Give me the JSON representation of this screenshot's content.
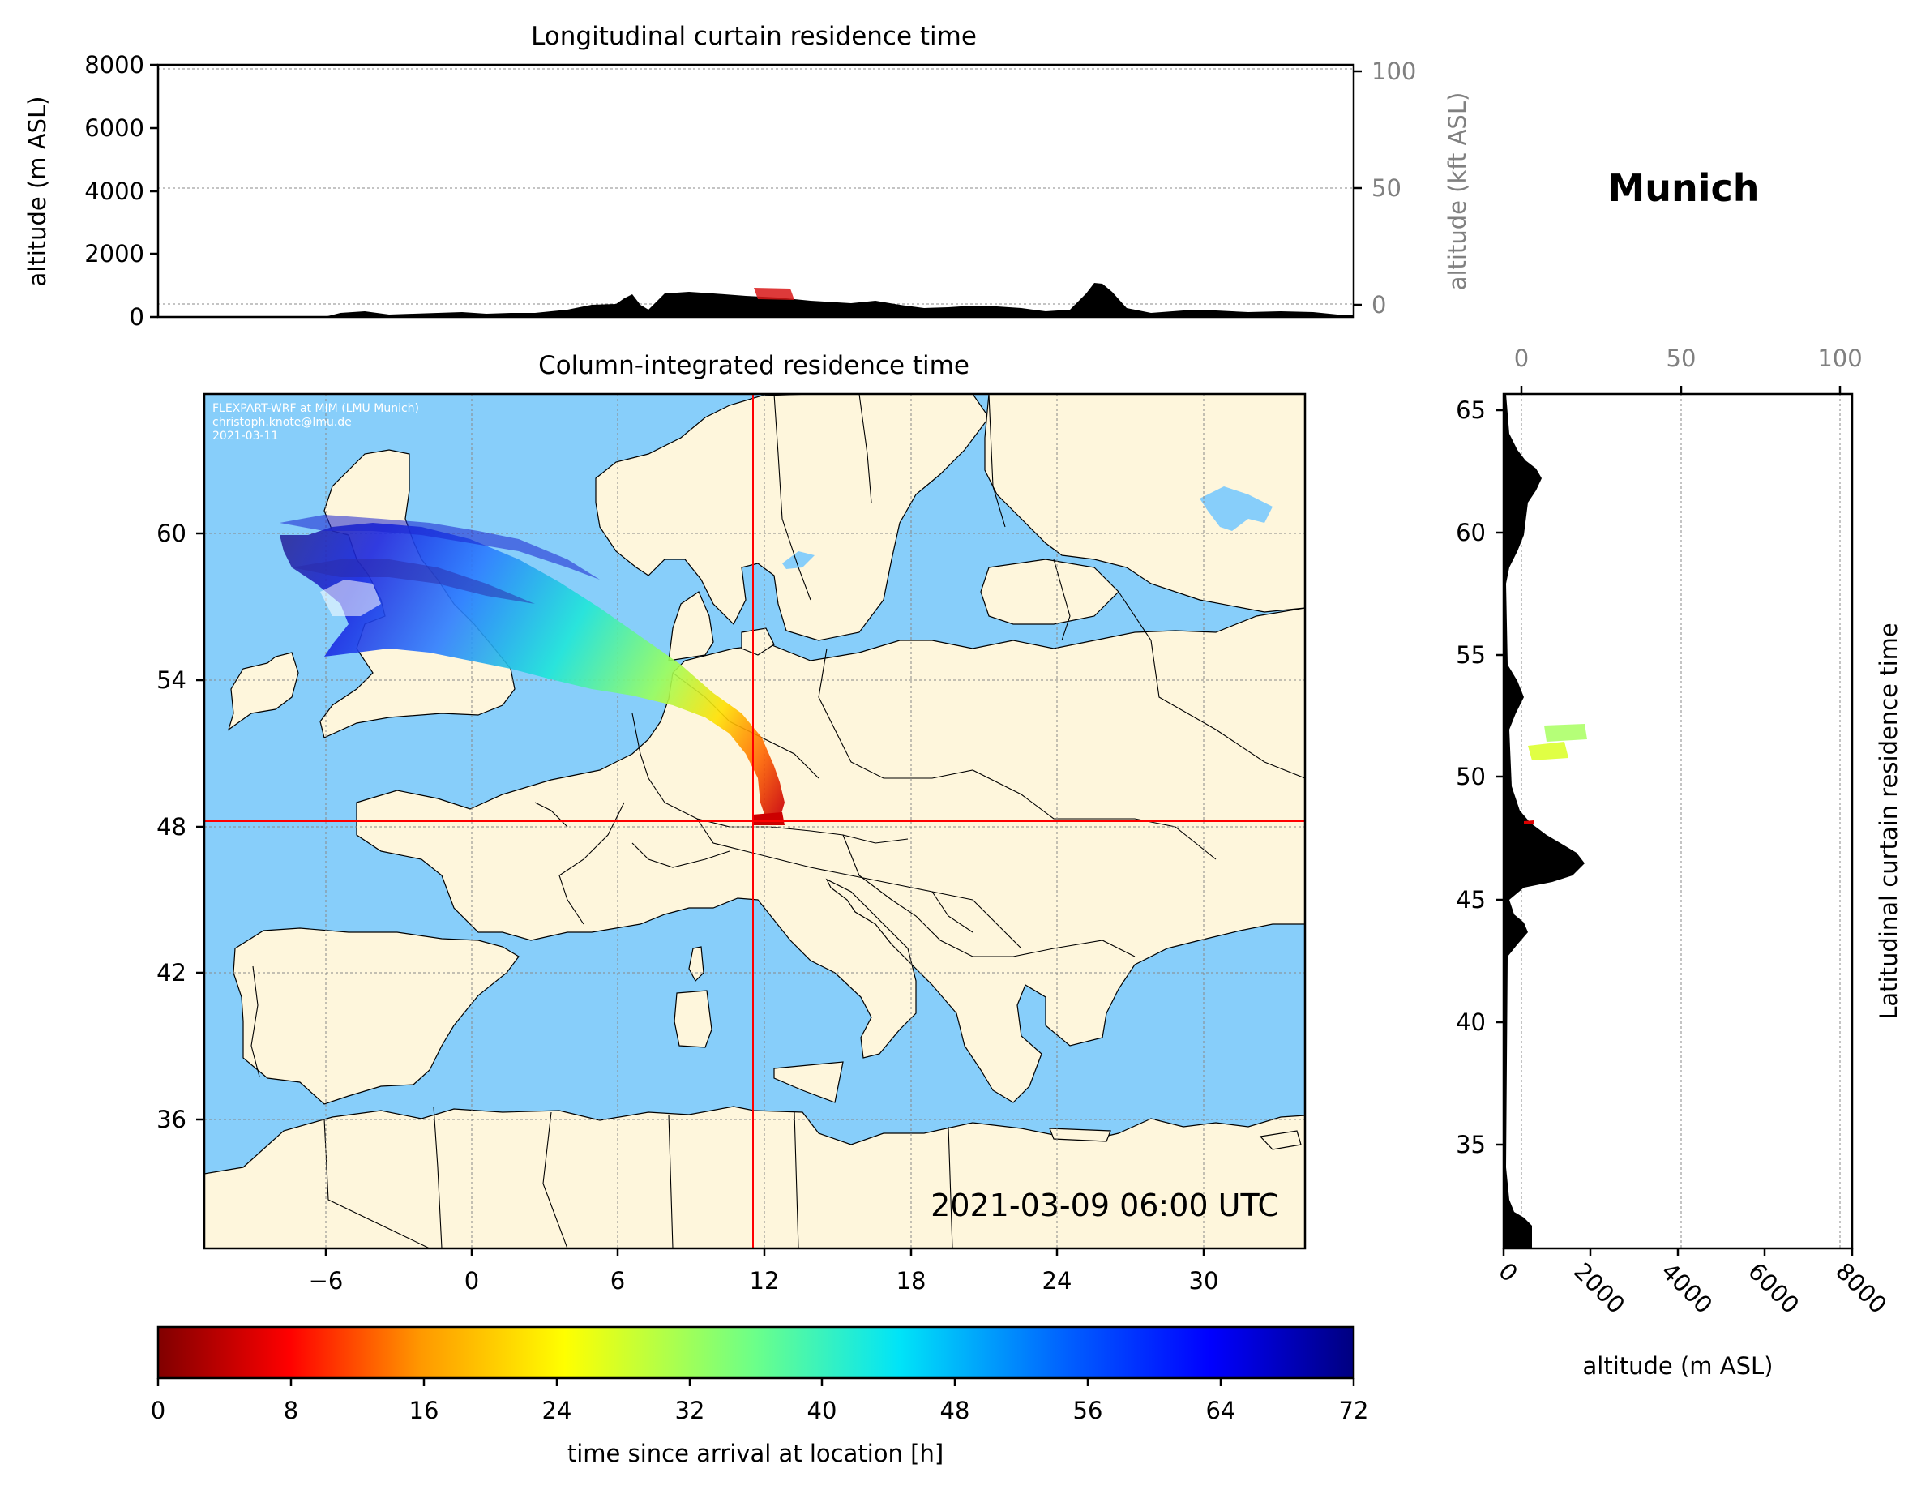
{
  "location_name": "Munich",
  "timestamp": "2021-03-09 06:00 UTC",
  "credit": {
    "line1": "FLEXPART-WRF at MIM (LMU Munich)",
    "line2": "christoph.knote@lmu.de",
    "line3": "2021-03-11"
  },
  "top_panel": {
    "title": "Longitudinal curtain residence time",
    "ylabel": "altitude (m ASL)",
    "ylabel_right": "altitude (kft ASL)",
    "yticks": [
      "0",
      "2000",
      "4000",
      "6000",
      "8000"
    ],
    "yticks_right": [
      "0",
      "50",
      "100"
    ]
  },
  "map_panel": {
    "title": "Column-integrated residence time",
    "xticks": [
      "−6",
      "0",
      "6",
      "12",
      "18",
      "24",
      "30"
    ],
    "yticks": [
      "36",
      "42",
      "48",
      "54",
      "60"
    ],
    "colors": {
      "ocean": "#87cefa",
      "land": "#fef6dc",
      "crosshair": "#ff0000"
    }
  },
  "right_panel": {
    "ylabel": "Latitudinal curtain residence time",
    "xlabel": "altitude (m ASL)",
    "yticks": [
      "35",
      "40",
      "45",
      "50",
      "55",
      "60",
      "65"
    ],
    "xticks": [
      "0",
      "2000",
      "4000",
      "6000",
      "8000"
    ],
    "xticks_top": [
      "0",
      "50",
      "100"
    ]
  },
  "colorbar": {
    "label": "time since arrival at location [h]",
    "ticks": [
      "0",
      "8",
      "16",
      "24",
      "32",
      "40",
      "48",
      "56",
      "64",
      "72"
    ],
    "min": 0,
    "max": 72,
    "colormap": "jet_r"
  },
  "chart_data": {
    "type": "heatmap",
    "arrival_location": {
      "lon": 11.6,
      "lat": 48.1
    },
    "xlim": [
      -9.5,
      35
    ],
    "ylim": [
      30.5,
      65
    ],
    "plume_path": [
      {
        "lon": 12.5,
        "lat": 48.3,
        "hours": 2
      },
      {
        "lon": 12.4,
        "lat": 49.3,
        "hours": 14
      },
      {
        "lon": 11.5,
        "lat": 50.5,
        "hours": 24
      },
      {
        "lon": 8.5,
        "lat": 53.5,
        "hours": 38
      },
      {
        "lon": 3.0,
        "lat": 56.0,
        "hours": 50
      },
      {
        "lon": -2.0,
        "lat": 57.5,
        "hours": 60
      },
      {
        "lon": -7.5,
        "lat": 60.0,
        "hours": 70
      }
    ]
  }
}
